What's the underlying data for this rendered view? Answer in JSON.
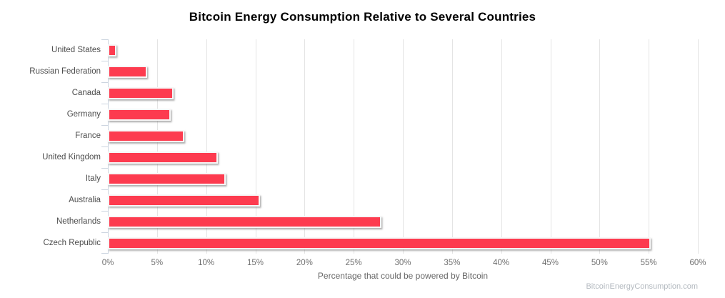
{
  "title": "Bitcoin Energy Consumption Relative to Several Countries",
  "watermark": "BitcoinEnergyConsumption.com",
  "colors": {
    "bar_fill": "#fd3b4f",
    "bar_border": "#f7f7f7",
    "axis_line": "#ccd5e0",
    "gridline": "#e4e4e4",
    "category_label": "#4d4d4d",
    "tick_label": "#6f6f6f",
    "axis_title": "#666666",
    "watermark": "#b4bac0",
    "title": "#000000"
  },
  "chart_data": {
    "type": "bar",
    "orientation": "horizontal",
    "title": "Bitcoin Energy Consumption Relative to Several Countries",
    "categories": [
      "United States",
      "Russian Federation",
      "Canada",
      "Germany",
      "France",
      "United Kingdom",
      "Italy",
      "Australia",
      "Netherlands",
      "Czech Republic"
    ],
    "values": [
      0.9,
      4.0,
      6.7,
      6.4,
      7.8,
      11.2,
      12.0,
      15.5,
      27.8,
      55.2
    ],
    "unit": "%",
    "xlabel": "Percentage that could be powered by Bitcoin",
    "ylabel": "",
    "xlim": [
      0,
      60
    ],
    "tick_values": [
      0,
      5,
      10,
      15,
      20,
      25,
      30,
      35,
      40,
      45,
      50,
      55,
      60
    ],
    "tick_labels": [
      "0%",
      "5%",
      "10%",
      "15%",
      "20%",
      "25%",
      "30%",
      "35%",
      "40%",
      "45%",
      "50%",
      "55%",
      "60%"
    ],
    "grid": true,
    "legend": false
  }
}
